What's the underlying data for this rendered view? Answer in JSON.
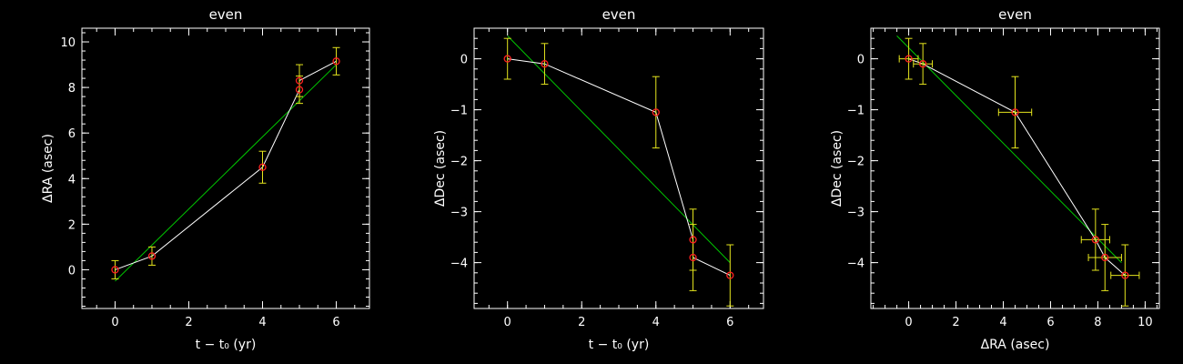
{
  "colors": {
    "background": "#000000",
    "axes": "#ffffff",
    "data_line": "#ffffff",
    "fit_line": "#00c800",
    "marker": "#ff2020",
    "errorbar": "#e6e61e"
  },
  "chart_data": [
    {
      "type": "scatter",
      "title": "even",
      "xlabel": "t − t₀ (yr)",
      "ylabel": "ΔRA (asec)",
      "xlim": [
        -0.9,
        6.9
      ],
      "ylim": [
        -1.7,
        10.6
      ],
      "xticks": [
        0,
        2,
        4,
        6
      ],
      "yticks": [
        0,
        2,
        4,
        6,
        8,
        10
      ],
      "grid": false,
      "x": [
        0,
        1,
        4,
        5,
        5,
        6
      ],
      "y": [
        0.0,
        0.6,
        4.5,
        7.9,
        8.3,
        9.15
      ],
      "yerr": [
        0.4,
        0.4,
        0.7,
        0.6,
        0.7,
        0.6
      ],
      "fit": {
        "x": [
          0,
          6
        ],
        "y": [
          -0.5,
          9.0
        ]
      }
    },
    {
      "type": "scatter",
      "title": "even",
      "xlabel": "t − t₀ (yr)",
      "ylabel": "ΔDec (asec)",
      "xlim": [
        -0.9,
        6.9
      ],
      "ylim": [
        -4.9,
        0.6
      ],
      "xticks": [
        0,
        2,
        4,
        6
      ],
      "yticks": [
        0,
        -1,
        -2,
        -3,
        -4
      ],
      "grid": false,
      "x": [
        0,
        1,
        4,
        5,
        5,
        6
      ],
      "y": [
        0.0,
        -0.1,
        -1.05,
        -3.55,
        -3.9,
        -4.25
      ],
      "yerr": [
        0.4,
        0.4,
        0.7,
        0.6,
        0.65,
        0.6
      ],
      "fit": {
        "x": [
          0,
          6
        ],
        "y": [
          0.45,
          -4.0
        ]
      }
    },
    {
      "type": "scatter",
      "title": "even",
      "xlabel": "ΔRA (asec)",
      "ylabel": "ΔDec (asec)",
      "xlim": [
        -1.6,
        10.6
      ],
      "ylim": [
        -4.9,
        0.6
      ],
      "xticks": [
        0,
        2,
        4,
        6,
        8,
        10
      ],
      "yticks": [
        0,
        -1,
        -2,
        -3,
        -4
      ],
      "grid": false,
      "x": [
        0.0,
        0.6,
        4.5,
        7.9,
        8.3,
        9.15
      ],
      "y": [
        0.0,
        -0.1,
        -1.05,
        -3.55,
        -3.9,
        -4.25
      ],
      "xerr": [
        0.4,
        0.4,
        0.7,
        0.6,
        0.7,
        0.6
      ],
      "yerr": [
        0.4,
        0.4,
        0.7,
        0.6,
        0.65,
        0.6
      ],
      "fit": {
        "x": [
          -0.5,
          9.0
        ],
        "y": [
          0.45,
          -4.0
        ]
      }
    }
  ]
}
